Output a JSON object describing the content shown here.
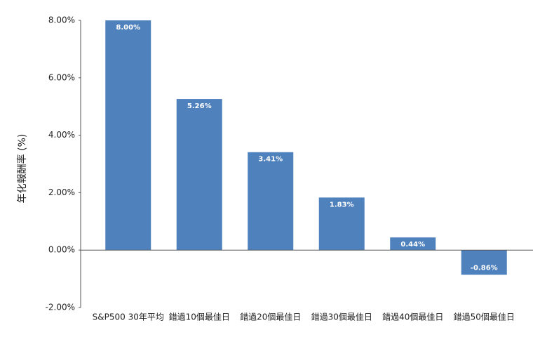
{
  "chart_data": {
    "type": "bar",
    "y_label": "年化報酬率 (%)",
    "categories": [
      "S&P500 30年平均",
      "錯過10個最佳日",
      "錯過20個最佳日",
      "錯過30個最佳日",
      "錯過40個最佳日",
      "錯過50個最佳日"
    ],
    "values": [
      8,
      5.26,
      3.41,
      1.83,
      0.44,
      -0.86
    ],
    "value_labels": [
      "8.00%",
      "5.26%",
      "3.41%",
      "1.83%",
      "0.44%",
      "-0.86%"
    ],
    "color": "#4f81bd",
    "ylim": [
      -2,
      8
    ],
    "yticks": [
      {
        "value": -2,
        "label": "-2.00%"
      },
      {
        "value": 0,
        "label": "0.00%"
      },
      {
        "value": 2,
        "label": "2.00%"
      },
      {
        "value": 4,
        "label": "4.00%"
      },
      {
        "value": 6,
        "label": "6.00%"
      },
      {
        "value": 8,
        "label": "8.00%"
      }
    ],
    "grid": false
  }
}
